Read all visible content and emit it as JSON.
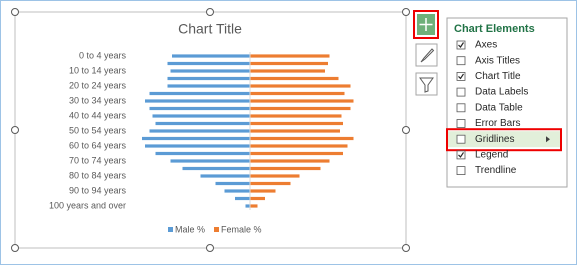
{
  "chart_data": {
    "type": "bar",
    "orientation": "horizontal",
    "title": "Chart Title",
    "categories": [
      "0 to 4 years",
      null,
      "10 to 14 years",
      null,
      "20 to 24 years",
      null,
      "30 to 34 years",
      null,
      "40 to 44 years",
      null,
      "50 to 54 years",
      null,
      "60 to 64 years",
      null,
      "70 to 74 years",
      null,
      "80 to 84 years",
      null,
      "90 to 94 years",
      null,
      "100 years and over"
    ],
    "series": [
      {
        "name": "Male %",
        "color": "#5b9bd5",
        "values": [
          -5.2,
          -5.5,
          -5.3,
          -5.5,
          -5.5,
          -6.7,
          -7.0,
          -6.7,
          -6.5,
          -6.3,
          -6.7,
          -7.2,
          -7.0,
          -6.3,
          -5.3,
          -4.5,
          -3.3,
          -2.3,
          -1.7,
          -1.0,
          -0.3
        ]
      },
      {
        "name": "Female %",
        "color": "#ed7d31",
        "values": [
          5.3,
          5.2,
          5.0,
          5.9,
          6.7,
          6.3,
          6.9,
          6.7,
          6.1,
          6.2,
          6.0,
          6.9,
          6.5,
          6.2,
          5.3,
          4.7,
          3.3,
          2.7,
          1.7,
          1.0,
          0.5
        ]
      }
    ],
    "xlim": [
      -8,
      8
    ],
    "legend": "bottom"
  },
  "panel": {
    "title": "Chart Elements",
    "items": [
      {
        "label": "Axes",
        "checked": true
      },
      {
        "label": "Axis Titles",
        "checked": false
      },
      {
        "label": "Chart Title",
        "checked": true
      },
      {
        "label": "Data Labels",
        "checked": false
      },
      {
        "label": "Data Table",
        "checked": false
      },
      {
        "label": "Error Bars",
        "checked": false
      },
      {
        "label": "Gridlines",
        "checked": false,
        "highlighted": true
      },
      {
        "label": "Legend",
        "checked": true
      },
      {
        "label": "Trendline",
        "checked": false
      }
    ]
  }
}
